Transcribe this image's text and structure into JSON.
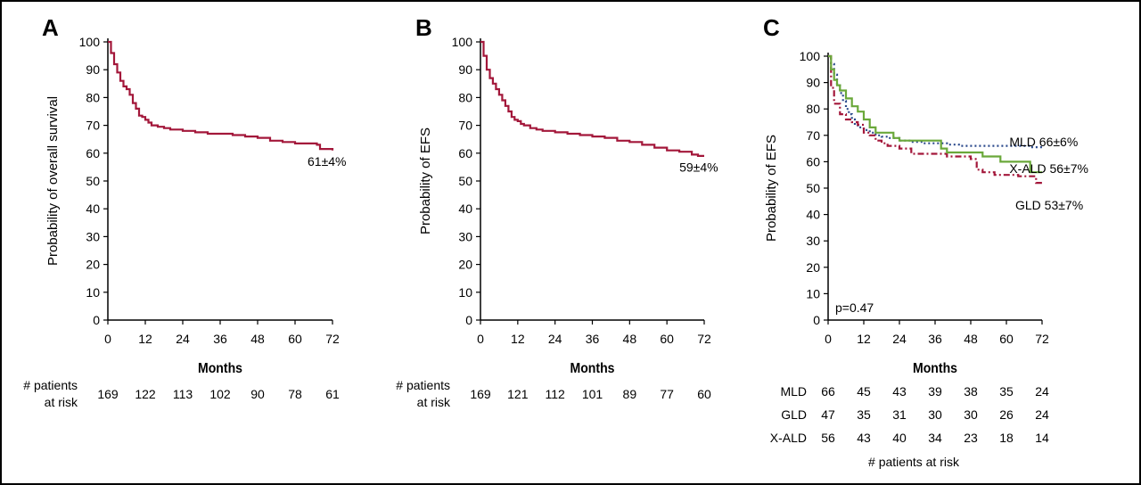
{
  "chart_data": [
    {
      "type": "line",
      "panel_label": "A",
      "title": "",
      "xlabel": "Months",
      "ylabel": "Probability of overall survival",
      "xlim": [
        0,
        72
      ],
      "ylim": [
        0,
        100
      ],
      "x_ticks": [
        0,
        12,
        24,
        36,
        48,
        60,
        72
      ],
      "y_ticks": [
        0,
        10,
        20,
        30,
        40,
        50,
        60,
        70,
        80,
        90,
        100
      ],
      "grid": false,
      "colors": {
        "primary": "#a3173a"
      },
      "series": [
        {
          "color": "#a3173a",
          "style": "solid",
          "points": [
            [
              0,
              100
            ],
            [
              1,
              96
            ],
            [
              2,
              92
            ],
            [
              3,
              89
            ],
            [
              4,
              86
            ],
            [
              5,
              84
            ],
            [
              6,
              83
            ],
            [
              7,
              81
            ],
            [
              8,
              78
            ],
            [
              9,
              76
            ],
            [
              10,
              73.5
            ],
            [
              11,
              73
            ],
            [
              12,
              72
            ],
            [
              13,
              71
            ],
            [
              14,
              70
            ],
            [
              16,
              69.5
            ],
            [
              18,
              69
            ],
            [
              20,
              68.5
            ],
            [
              24,
              68
            ],
            [
              28,
              67.5
            ],
            [
              32,
              67
            ],
            [
              36,
              67
            ],
            [
              40,
              66.5
            ],
            [
              44,
              66
            ],
            [
              48,
              65.5
            ],
            [
              52,
              64.5
            ],
            [
              56,
              64
            ],
            [
              60,
              63.5
            ],
            [
              64,
              63.5
            ],
            [
              67,
              63
            ],
            [
              68,
              61.5
            ],
            [
              72,
              61
            ]
          ]
        }
      ],
      "annotations": [
        {
          "text": "61±4%",
          "x": 64,
          "y": 57
        }
      ],
      "risk_table": {
        "label_lines": [
          "# patients",
          "at risk"
        ],
        "rows": [
          {
            "name": "",
            "values": [
              "169",
              "122",
              "113",
              "102",
              "90",
              "78",
              "61"
            ]
          }
        ]
      }
    },
    {
      "type": "line",
      "panel_label": "B",
      "title": "",
      "xlabel": "Months",
      "ylabel": "Probability of EFS",
      "xlim": [
        0,
        72
      ],
      "ylim": [
        0,
        100
      ],
      "x_ticks": [
        0,
        12,
        24,
        36,
        48,
        60,
        72
      ],
      "y_ticks": [
        0,
        10,
        20,
        30,
        40,
        50,
        60,
        70,
        80,
        90,
        100
      ],
      "grid": false,
      "colors": {
        "primary": "#a3173a"
      },
      "series": [
        {
          "color": "#a3173a",
          "style": "solid",
          "points": [
            [
              0,
              100
            ],
            [
              1,
              95
            ],
            [
              2,
              90
            ],
            [
              3,
              87
            ],
            [
              4,
              85
            ],
            [
              5,
              83
            ],
            [
              6,
              81
            ],
            [
              7,
              79
            ],
            [
              8,
              77
            ],
            [
              9,
              75
            ],
            [
              10,
              73
            ],
            [
              11,
              72
            ],
            [
              12,
              71.5
            ],
            [
              13,
              70.5
            ],
            [
              14,
              70
            ],
            [
              16,
              69
            ],
            [
              18,
              68.5
            ],
            [
              20,
              68
            ],
            [
              24,
              67.5
            ],
            [
              28,
              67
            ],
            [
              32,
              66.5
            ],
            [
              36,
              66
            ],
            [
              40,
              65.5
            ],
            [
              44,
              64.5
            ],
            [
              48,
              64
            ],
            [
              52,
              63
            ],
            [
              56,
              62
            ],
            [
              60,
              61
            ],
            [
              64,
              60.5
            ],
            [
              68,
              59.5
            ],
            [
              70,
              59
            ],
            [
              72,
              59
            ]
          ]
        }
      ],
      "annotations": [
        {
          "text": "59±4%",
          "x": 64,
          "y": 55
        }
      ],
      "risk_table": {
        "label_lines": [
          "# patients",
          "at risk"
        ],
        "rows": [
          {
            "name": "",
            "values": [
              "169",
              "121",
              "112",
              "101",
              "89",
              "77",
              "60"
            ]
          }
        ]
      }
    },
    {
      "type": "line",
      "panel_label": "C",
      "title": "",
      "xlabel": "Months",
      "ylabel": "Probability of EFS",
      "xlim": [
        0,
        72
      ],
      "ylim": [
        0,
        100
      ],
      "x_ticks": [
        0,
        12,
        24,
        36,
        48,
        60,
        72
      ],
      "y_ticks": [
        0,
        10,
        20,
        30,
        40,
        50,
        60,
        70,
        80,
        90,
        100
      ],
      "grid": false,
      "colors": {
        "mld": "#2b4a8c",
        "gld": "#a3173a",
        "xald": "#6aa83a"
      },
      "series": [
        {
          "name": "MLD",
          "color": "#2b4a8c",
          "style": "dotted",
          "points": [
            [
              0,
              100
            ],
            [
              1,
              97
            ],
            [
              2,
              93
            ],
            [
              3,
              89
            ],
            [
              4,
              86
            ],
            [
              5,
              83
            ],
            [
              6,
              80
            ],
            [
              7,
              78
            ],
            [
              8,
              76
            ],
            [
              9,
              74
            ],
            [
              10,
              73
            ],
            [
              12,
              72
            ],
            [
              14,
              71
            ],
            [
              16,
              70
            ],
            [
              18,
              69.5
            ],
            [
              20,
              69
            ],
            [
              24,
              68
            ],
            [
              28,
              67.5
            ],
            [
              32,
              67
            ],
            [
              36,
              67
            ],
            [
              40,
              66.5
            ],
            [
              44,
              66
            ],
            [
              48,
              66
            ],
            [
              52,
              66
            ],
            [
              56,
              66
            ],
            [
              60,
              66
            ],
            [
              64,
              66
            ],
            [
              68,
              65.5
            ],
            [
              72,
              65.5
            ]
          ]
        },
        {
          "name": "GLD",
          "color": "#a3173a",
          "style": "dashdot",
          "points": [
            [
              0,
              100
            ],
            [
              1,
              88
            ],
            [
              2,
              82
            ],
            [
              4,
              78
            ],
            [
              6,
              76
            ],
            [
              8,
              75
            ],
            [
              10,
              74
            ],
            [
              12,
              71
            ],
            [
              14,
              70
            ],
            [
              16,
              68
            ],
            [
              18,
              67
            ],
            [
              20,
              66
            ],
            [
              24,
              65
            ],
            [
              28,
              63
            ],
            [
              36,
              63
            ],
            [
              40,
              62
            ],
            [
              44,
              62
            ],
            [
              48,
              61
            ],
            [
              50,
              57
            ],
            [
              52,
              56
            ],
            [
              56,
              55
            ],
            [
              60,
              55
            ],
            [
              64,
              54.5
            ],
            [
              68,
              54.5
            ],
            [
              70,
              52
            ],
            [
              72,
              51
            ]
          ]
        },
        {
          "name": "X-ALD",
          "color": "#6aa83a",
          "style": "solid",
          "points": [
            [
              0,
              100
            ],
            [
              1,
              95
            ],
            [
              2,
              91
            ],
            [
              3,
              89
            ],
            [
              4,
              87
            ],
            [
              6,
              84
            ],
            [
              8,
              81
            ],
            [
              10,
              79
            ],
            [
              12,
              76
            ],
            [
              14,
              73
            ],
            [
              16,
              71
            ],
            [
              20,
              71
            ],
            [
              22,
              69
            ],
            [
              24,
              68
            ],
            [
              36,
              68
            ],
            [
              38,
              65
            ],
            [
              40,
              63.5
            ],
            [
              48,
              63.5
            ],
            [
              52,
              62
            ],
            [
              56,
              62
            ],
            [
              58,
              60
            ],
            [
              66,
              60
            ],
            [
              68,
              56
            ],
            [
              72,
              56
            ]
          ]
        }
      ],
      "labels": [
        {
          "text": "MLD 66±6%",
          "x": 61,
          "y": 67.5
        },
        {
          "text": "X-ALD 56±7%",
          "x": 61,
          "y": 57.5
        },
        {
          "text": "GLD 53±7%",
          "x": 63,
          "y": 43.5
        }
      ],
      "pvalue": "p=0.47",
      "risk_table": {
        "footer": "# patients at risk",
        "rows": [
          {
            "name": "MLD",
            "values": [
              "66",
              "45",
              "43",
              "39",
              "38",
              "35",
              "24"
            ]
          },
          {
            "name": "GLD",
            "values": [
              "47",
              "35",
              "31",
              "30",
              "30",
              "26",
              "24"
            ]
          },
          {
            "name": "X-ALD",
            "values": [
              "56",
              "43",
              "40",
              "34",
              "23",
              "18",
              "14"
            ]
          }
        ]
      }
    }
  ]
}
